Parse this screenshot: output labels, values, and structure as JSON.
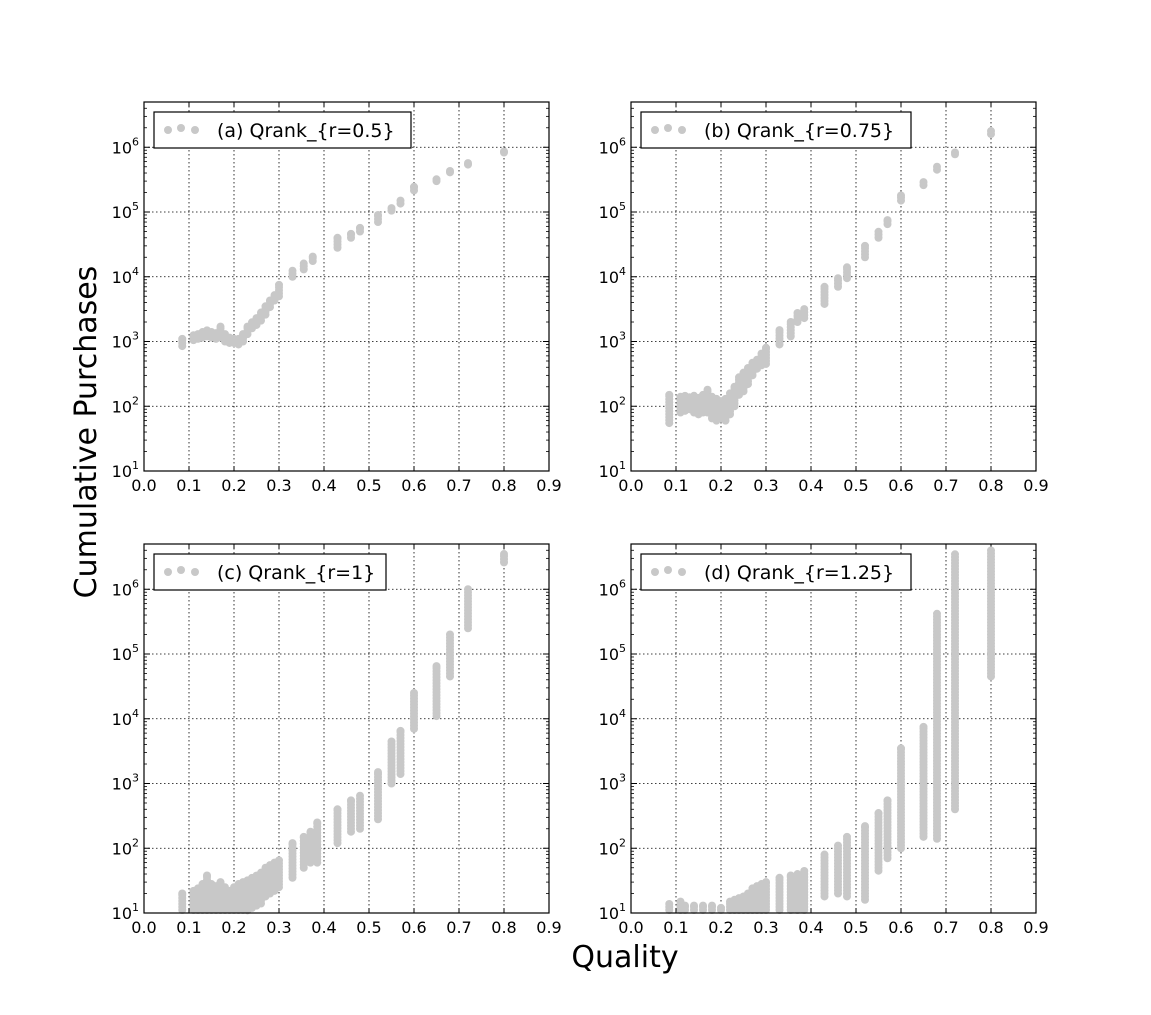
{
  "figure": {
    "xlabel": "Quality",
    "ylabel": "Cumulative Purchases"
  },
  "chart_data": [
    {
      "type": "scatter",
      "legend": "(a) Qrank_{r=0.5}",
      "legend_position": "top-left",
      "color": "#c8c8c8",
      "grid": true,
      "y_scale": "log",
      "xlim": [
        0.0,
        0.9
      ],
      "ylim": [
        10,
        5000000
      ],
      "x_ticks": [
        "0.0",
        "0.1",
        "0.2",
        "0.3",
        "0.4",
        "0.5",
        "0.6",
        "0.7",
        "0.8",
        "0.9"
      ],
      "y_ticks": [
        {
          "base": "10",
          "exp": "1"
        },
        {
          "base": "10",
          "exp": "2"
        },
        {
          "base": "10",
          "exp": "3"
        },
        {
          "base": "10",
          "exp": "4"
        },
        {
          "base": "10",
          "exp": "5"
        },
        {
          "base": "10",
          "exp": "6"
        }
      ],
      "columns": [
        {
          "x": 0.085,
          "min": 850,
          "max": 1100
        },
        {
          "x": 0.11,
          "min": 1050,
          "max": 1250
        },
        {
          "x": 0.12,
          "min": 1100,
          "max": 1300
        },
        {
          "x": 0.13,
          "min": 1150,
          "max": 1400
        },
        {
          "x": 0.14,
          "min": 1200,
          "max": 1500
        },
        {
          "x": 0.15,
          "min": 1150,
          "max": 1400
        },
        {
          "x": 0.16,
          "min": 1100,
          "max": 1350
        },
        {
          "x": 0.17,
          "min": 1150,
          "max": 1700
        },
        {
          "x": 0.18,
          "min": 1000,
          "max": 1300
        },
        {
          "x": 0.19,
          "min": 950,
          "max": 1150
        },
        {
          "x": 0.2,
          "min": 950,
          "max": 1100
        },
        {
          "x": 0.21,
          "min": 900,
          "max": 1100
        },
        {
          "x": 0.22,
          "min": 1000,
          "max": 1300
        },
        {
          "x": 0.23,
          "min": 1300,
          "max": 1700
        },
        {
          "x": 0.24,
          "min": 1600,
          "max": 2000
        },
        {
          "x": 0.25,
          "min": 1800,
          "max": 2300
        },
        {
          "x": 0.26,
          "min": 2100,
          "max": 2800
        },
        {
          "x": 0.27,
          "min": 2600,
          "max": 3500
        },
        {
          "x": 0.28,
          "min": 3400,
          "max": 4300
        },
        {
          "x": 0.29,
          "min": 4300,
          "max": 5200
        },
        {
          "x": 0.3,
          "min": 5000,
          "max": 7500
        },
        {
          "x": 0.33,
          "min": 10000,
          "max": 12500
        },
        {
          "x": 0.355,
          "min": 13000,
          "max": 16000
        },
        {
          "x": 0.375,
          "min": 17500,
          "max": 20500
        },
        {
          "x": 0.43,
          "min": 28000,
          "max": 40000
        },
        {
          "x": 0.46,
          "min": 40000,
          "max": 46000
        },
        {
          "x": 0.48,
          "min": 50000,
          "max": 57000
        },
        {
          "x": 0.52,
          "min": 70000,
          "max": 90000
        },
        {
          "x": 0.55,
          "min": 105000,
          "max": 115000
        },
        {
          "x": 0.57,
          "min": 135000,
          "max": 150000
        },
        {
          "x": 0.6,
          "min": 215000,
          "max": 245000
        },
        {
          "x": 0.65,
          "min": 300000,
          "max": 320000
        },
        {
          "x": 0.68,
          "min": 410000,
          "max": 430000
        },
        {
          "x": 0.72,
          "min": 540000,
          "max": 570000
        },
        {
          "x": 0.8,
          "min": 830000,
          "max": 860000
        }
      ]
    },
    {
      "type": "scatter",
      "legend": "(b) Qrank_{r=0.75}",
      "legend_position": "top-left",
      "color": "#c8c8c8",
      "grid": true,
      "y_scale": "log",
      "xlim": [
        0.0,
        0.9
      ],
      "ylim": [
        10,
        5000000
      ],
      "x_ticks": [
        "0.0",
        "0.1",
        "0.2",
        "0.3",
        "0.4",
        "0.5",
        "0.6",
        "0.7",
        "0.8",
        "0.9"
      ],
      "y_ticks": [
        {
          "base": "10",
          "exp": "1"
        },
        {
          "base": "10",
          "exp": "2"
        },
        {
          "base": "10",
          "exp": "3"
        },
        {
          "base": "10",
          "exp": "4"
        },
        {
          "base": "10",
          "exp": "5"
        },
        {
          "base": "10",
          "exp": "6"
        }
      ],
      "columns": [
        {
          "x": 0.085,
          "min": 55,
          "max": 150
        },
        {
          "x": 0.11,
          "min": 80,
          "max": 140
        },
        {
          "x": 0.12,
          "min": 85,
          "max": 145
        },
        {
          "x": 0.13,
          "min": 90,
          "max": 140
        },
        {
          "x": 0.14,
          "min": 80,
          "max": 145
        },
        {
          "x": 0.15,
          "min": 75,
          "max": 135
        },
        {
          "x": 0.16,
          "min": 80,
          "max": 150
        },
        {
          "x": 0.17,
          "min": 80,
          "max": 180
        },
        {
          "x": 0.18,
          "min": 65,
          "max": 140
        },
        {
          "x": 0.19,
          "min": 60,
          "max": 130
        },
        {
          "x": 0.2,
          "min": 65,
          "max": 120
        },
        {
          "x": 0.21,
          "min": 60,
          "max": 130
        },
        {
          "x": 0.22,
          "min": 75,
          "max": 160
        },
        {
          "x": 0.23,
          "min": 100,
          "max": 200
        },
        {
          "x": 0.24,
          "min": 150,
          "max": 280
        },
        {
          "x": 0.25,
          "min": 170,
          "max": 330
        },
        {
          "x": 0.26,
          "min": 220,
          "max": 390
        },
        {
          "x": 0.27,
          "min": 300,
          "max": 470
        },
        {
          "x": 0.28,
          "min": 380,
          "max": 530
        },
        {
          "x": 0.29,
          "min": 430,
          "max": 650
        },
        {
          "x": 0.3,
          "min": 450,
          "max": 800
        },
        {
          "x": 0.33,
          "min": 900,
          "max": 1500
        },
        {
          "x": 0.355,
          "min": 1200,
          "max": 2000
        },
        {
          "x": 0.37,
          "min": 2000,
          "max": 2800
        },
        {
          "x": 0.385,
          "min": 2300,
          "max": 3200
        },
        {
          "x": 0.43,
          "min": 3800,
          "max": 7000
        },
        {
          "x": 0.46,
          "min": 7000,
          "max": 9500
        },
        {
          "x": 0.48,
          "min": 9500,
          "max": 14000
        },
        {
          "x": 0.52,
          "min": 20000,
          "max": 30000
        },
        {
          "x": 0.55,
          "min": 40000,
          "max": 50000
        },
        {
          "x": 0.57,
          "min": 65000,
          "max": 75000
        },
        {
          "x": 0.6,
          "min": 150000,
          "max": 180000
        },
        {
          "x": 0.65,
          "min": 260000,
          "max": 290000
        },
        {
          "x": 0.68,
          "min": 450000,
          "max": 500000
        },
        {
          "x": 0.72,
          "min": 780000,
          "max": 830000
        },
        {
          "x": 0.8,
          "min": 1600000,
          "max": 1800000
        }
      ]
    },
    {
      "type": "scatter",
      "legend": "(c) Qrank_{r=1}",
      "legend_position": "top-left",
      "color": "#c8c8c8",
      "grid": true,
      "y_scale": "log",
      "xlim": [
        0.0,
        0.9
      ],
      "ylim": [
        10,
        5000000
      ],
      "x_ticks": [
        "0.0",
        "0.1",
        "0.2",
        "0.3",
        "0.4",
        "0.5",
        "0.6",
        "0.7",
        "0.8",
        "0.9"
      ],
      "y_ticks": [
        {
          "base": "10",
          "exp": "1"
        },
        {
          "base": "10",
          "exp": "2"
        },
        {
          "base": "10",
          "exp": "3"
        },
        {
          "base": "10",
          "exp": "4"
        },
        {
          "base": "10",
          "exp": "5"
        },
        {
          "base": "10",
          "exp": "6"
        }
      ],
      "columns": [
        {
          "x": 0.085,
          "min": 10,
          "max": 20
        },
        {
          "x": 0.11,
          "min": 10,
          "max": 22
        },
        {
          "x": 0.12,
          "min": 10,
          "max": 24
        },
        {
          "x": 0.13,
          "min": 10,
          "max": 28
        },
        {
          "x": 0.14,
          "min": 10,
          "max": 38
        },
        {
          "x": 0.15,
          "min": 10,
          "max": 28
        },
        {
          "x": 0.16,
          "min": 10,
          "max": 26
        },
        {
          "x": 0.17,
          "min": 10,
          "max": 30
        },
        {
          "x": 0.18,
          "min": 10,
          "max": 25
        },
        {
          "x": 0.19,
          "min": 10,
          "max": 22
        },
        {
          "x": 0.2,
          "min": 10,
          "max": 25
        },
        {
          "x": 0.21,
          "min": 10,
          "max": 28
        },
        {
          "x": 0.22,
          "min": 10,
          "max": 30
        },
        {
          "x": 0.23,
          "min": 11,
          "max": 32
        },
        {
          "x": 0.24,
          "min": 12,
          "max": 35
        },
        {
          "x": 0.25,
          "min": 13,
          "max": 38
        },
        {
          "x": 0.26,
          "min": 14,
          "max": 42
        },
        {
          "x": 0.27,
          "min": 18,
          "max": 50
        },
        {
          "x": 0.28,
          "min": 20,
          "max": 55
        },
        {
          "x": 0.29,
          "min": 22,
          "max": 60
        },
        {
          "x": 0.3,
          "min": 25,
          "max": 65
        },
        {
          "x": 0.33,
          "min": 35,
          "max": 120
        },
        {
          "x": 0.355,
          "min": 50,
          "max": 150
        },
        {
          "x": 0.37,
          "min": 60,
          "max": 180
        },
        {
          "x": 0.385,
          "min": 60,
          "max": 250
        },
        {
          "x": 0.43,
          "min": 120,
          "max": 400
        },
        {
          "x": 0.46,
          "min": 180,
          "max": 550
        },
        {
          "x": 0.48,
          "min": 200,
          "max": 650
        },
        {
          "x": 0.52,
          "min": 280,
          "max": 1500
        },
        {
          "x": 0.55,
          "min": 1000,
          "max": 4500
        },
        {
          "x": 0.57,
          "min": 1400,
          "max": 6500
        },
        {
          "x": 0.6,
          "min": 7000,
          "max": 25000
        },
        {
          "x": 0.65,
          "min": 11000,
          "max": 65000
        },
        {
          "x": 0.68,
          "min": 45000,
          "max": 200000
        },
        {
          "x": 0.72,
          "min": 250000,
          "max": 1000000
        },
        {
          "x": 0.8,
          "min": 2600000,
          "max": 3500000
        }
      ]
    },
    {
      "type": "scatter",
      "legend": "(d) Qrank_{r=1.25}",
      "legend_position": "top-left",
      "color": "#c8c8c8",
      "grid": true,
      "y_scale": "log",
      "xlim": [
        0.0,
        0.9
      ],
      "ylim": [
        10,
        5000000
      ],
      "x_ticks": [
        "0.0",
        "0.1",
        "0.2",
        "0.3",
        "0.4",
        "0.5",
        "0.6",
        "0.7",
        "0.8",
        "0.9"
      ],
      "y_ticks": [
        {
          "base": "10",
          "exp": "1"
        },
        {
          "base": "10",
          "exp": "2"
        },
        {
          "base": "10",
          "exp": "3"
        },
        {
          "base": "10",
          "exp": "4"
        },
        {
          "base": "10",
          "exp": "5"
        },
        {
          "base": "10",
          "exp": "6"
        }
      ],
      "columns": [
        {
          "x": 0.085,
          "min": 10,
          "max": 14
        },
        {
          "x": 0.11,
          "min": 10,
          "max": 15
        },
        {
          "x": 0.12,
          "min": 10,
          "max": 13
        },
        {
          "x": 0.14,
          "min": 10,
          "max": 13
        },
        {
          "x": 0.16,
          "min": 10,
          "max": 13
        },
        {
          "x": 0.18,
          "min": 10,
          "max": 13
        },
        {
          "x": 0.2,
          "min": 10,
          "max": 12
        },
        {
          "x": 0.22,
          "min": 10,
          "max": 15
        },
        {
          "x": 0.23,
          "min": 10,
          "max": 16
        },
        {
          "x": 0.24,
          "min": 10,
          "max": 17
        },
        {
          "x": 0.25,
          "min": 10,
          "max": 18
        },
        {
          "x": 0.26,
          "min": 10,
          "max": 20
        },
        {
          "x": 0.27,
          "min": 10,
          "max": 24
        },
        {
          "x": 0.28,
          "min": 10,
          "max": 26
        },
        {
          "x": 0.29,
          "min": 10,
          "max": 28
        },
        {
          "x": 0.3,
          "min": 10,
          "max": 30
        },
        {
          "x": 0.33,
          "min": 10,
          "max": 35
        },
        {
          "x": 0.355,
          "min": 10,
          "max": 38
        },
        {
          "x": 0.37,
          "min": 10,
          "max": 40
        },
        {
          "x": 0.385,
          "min": 10,
          "max": 45
        },
        {
          "x": 0.43,
          "min": 18,
          "max": 80
        },
        {
          "x": 0.46,
          "min": 20,
          "max": 110
        },
        {
          "x": 0.48,
          "min": 18,
          "max": 150
        },
        {
          "x": 0.52,
          "min": 16,
          "max": 220
        },
        {
          "x": 0.55,
          "min": 45,
          "max": 350
        },
        {
          "x": 0.57,
          "min": 70,
          "max": 550
        },
        {
          "x": 0.6,
          "min": 100,
          "max": 3500
        },
        {
          "x": 0.65,
          "min": 150,
          "max": 7500
        },
        {
          "x": 0.68,
          "min": 140,
          "max": 420000
        },
        {
          "x": 0.72,
          "min": 400,
          "max": 3500000
        },
        {
          "x": 0.8,
          "min": 45000,
          "max": 4000000
        }
      ]
    }
  ]
}
